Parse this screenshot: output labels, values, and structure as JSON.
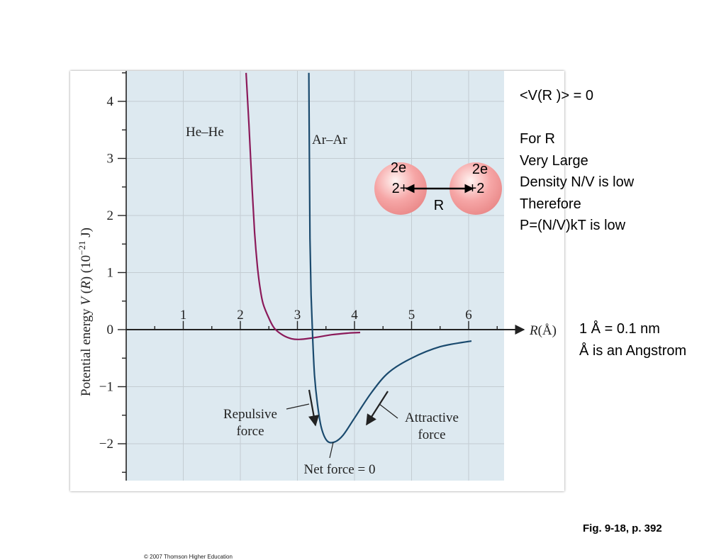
{
  "chart_data": {
    "type": "line",
    "ylabel": "Potential energy V(R) (10−21 J)",
    "ylabel_parts": {
      "lead": "Potential energy ",
      "V": "V",
      "open": " (",
      "R": "R",
      "close": ") (10",
      "exp": "−21",
      "unit": " J)"
    },
    "xlabel": "R(Å)",
    "xlabel_parts": {
      "R": "R",
      "unit": "(Å)"
    },
    "xlim": [
      0,
      6.6
    ],
    "ylim": [
      -2.6,
      4.5
    ],
    "x_ticks": [
      "1",
      "2",
      "3",
      "4",
      "5",
      "6"
    ],
    "y_ticks": [
      "4",
      "3",
      "2",
      "1",
      "0",
      "−1",
      "−2"
    ],
    "grid": true,
    "series": [
      {
        "name": "He–He",
        "color": "#8b1a5a",
        "points": [
          [
            2.1,
            4.5
          ],
          [
            2.15,
            3.6
          ],
          [
            2.2,
            2.6
          ],
          [
            2.25,
            1.7
          ],
          [
            2.3,
            1.1
          ],
          [
            2.35,
            0.7
          ],
          [
            2.4,
            0.45
          ],
          [
            2.5,
            0.2
          ],
          [
            2.6,
            0.02
          ],
          [
            2.75,
            -0.1
          ],
          [
            2.9,
            -0.16
          ],
          [
            3.05,
            -0.17
          ],
          [
            3.3,
            -0.14
          ],
          [
            3.6,
            -0.09
          ],
          [
            3.9,
            -0.06
          ],
          [
            4.1,
            -0.05
          ]
        ]
      },
      {
        "name": "Ar–Ar",
        "color": "#1a4a6e",
        "points": [
          [
            3.2,
            4.5
          ],
          [
            3.21,
            3.0
          ],
          [
            3.22,
            1.6
          ],
          [
            3.24,
            0.6
          ],
          [
            3.27,
            -0.2
          ],
          [
            3.3,
            -0.8
          ],
          [
            3.35,
            -1.3
          ],
          [
            3.42,
            -1.72
          ],
          [
            3.52,
            -1.95
          ],
          [
            3.65,
            -1.97
          ],
          [
            3.8,
            -1.85
          ],
          [
            4.0,
            -1.55
          ],
          [
            4.3,
            -1.1
          ],
          [
            4.6,
            -0.75
          ],
          [
            5.0,
            -0.5
          ],
          [
            5.5,
            -0.3
          ],
          [
            6.05,
            -0.2
          ]
        ]
      }
    ],
    "annotations": {
      "repulsive_line1": "Repulsive",
      "repulsive_line2": "force",
      "attractive_line1": "Attractive",
      "attractive_line2": "force",
      "net_force": "Net force = 0"
    },
    "copyright": "© 2007 Thomson Higher Education"
  },
  "diagram": {
    "left_top": "2e",
    "left_center": "2+",
    "right_top": "2e",
    "right_center": "+2",
    "separation": "R",
    "sphere_color": "#f6a6a6"
  },
  "notes": {
    "lines": [
      "<V(R )> = 0",
      "",
      "For R",
      "Very Large",
      "Density N/V is low",
      "Therefore",
      "P=(N/V)kT is low"
    ],
    "unit_line1": "1 Å = 0.1 nm",
    "unit_line2": "Å is an Angstrom",
    "figure_ref": "Fig. 9-18, p. 392"
  },
  "colors": {
    "plot_bg": "#dde9f0",
    "grid": "#c3ccd2",
    "axis": "#222222"
  }
}
